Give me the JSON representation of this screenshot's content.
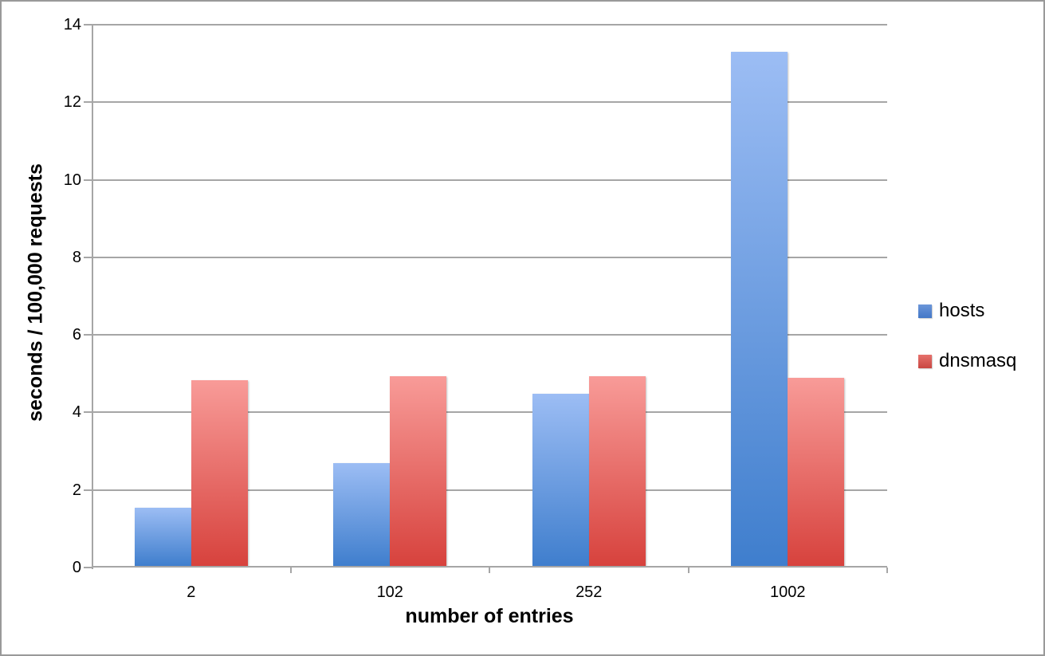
{
  "chart_data": {
    "type": "bar",
    "title": "",
    "categories": [
      "2",
      "102",
      "252",
      "1002"
    ],
    "series": [
      {
        "name": "hosts",
        "values": [
          1.5,
          2.65,
          4.45,
          13.25
        ],
        "bar_color_top": "#9CBDF4",
        "bar_color_bottom": "#3F7ECD",
        "legend_color_top": "#6B96D9",
        "legend_color_bottom": "#4377C7"
      },
      {
        "name": "dnsmasq",
        "values": [
          4.8,
          4.9,
          4.9,
          4.85
        ],
        "bar_color_top": "#F89B98",
        "bar_color_bottom": "#D7423D",
        "legend_color_top": "#E6716C",
        "legend_color_bottom": "#C94742"
      }
    ],
    "xlabel": "number of entries",
    "ylabel": "seconds / 100,000 requests",
    "ylim": [
      0,
      14
    ],
    "yticks": [
      0,
      2,
      4,
      6,
      8,
      10,
      12,
      14
    ],
    "grid": "horizontal",
    "legend_position": "right",
    "axis_color": "#A6A6A6",
    "text_color": "#000000",
    "background_color": "#FFFFFF"
  }
}
